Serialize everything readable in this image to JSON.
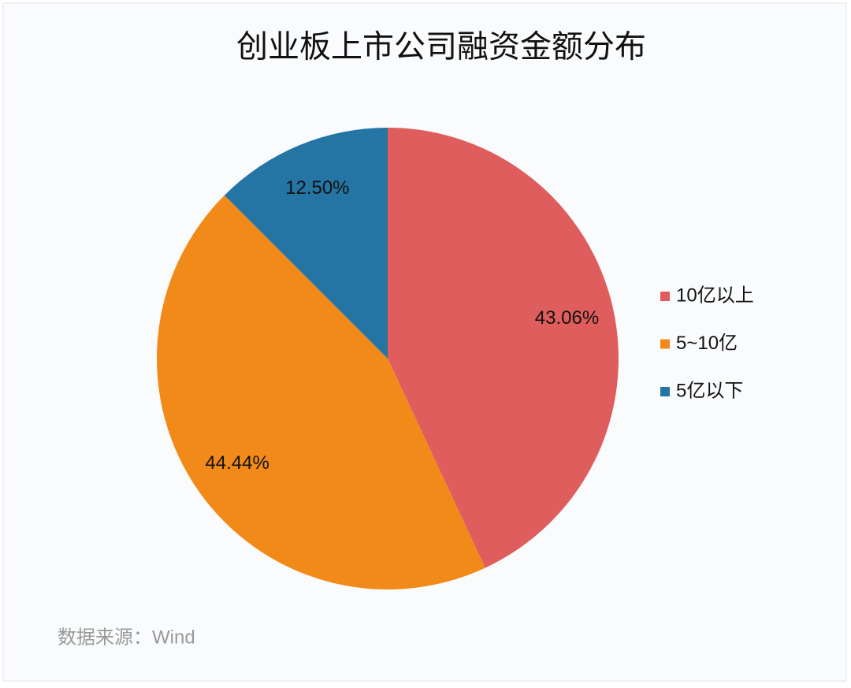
{
  "chart_data": {
    "type": "pie",
    "title": "创业板上市公司融资金额分布",
    "categories": [
      "10亿以上",
      "5~10亿",
      "5亿以下"
    ],
    "values": [
      43.06,
      44.44,
      12.5
    ],
    "value_labels": [
      "43.06%",
      "44.44%",
      "12.50%"
    ],
    "colors": [
      "#e05d5d",
      "#f28a1a",
      "#2475a3"
    ],
    "legend": "right",
    "source": "数据来源：Wind"
  }
}
